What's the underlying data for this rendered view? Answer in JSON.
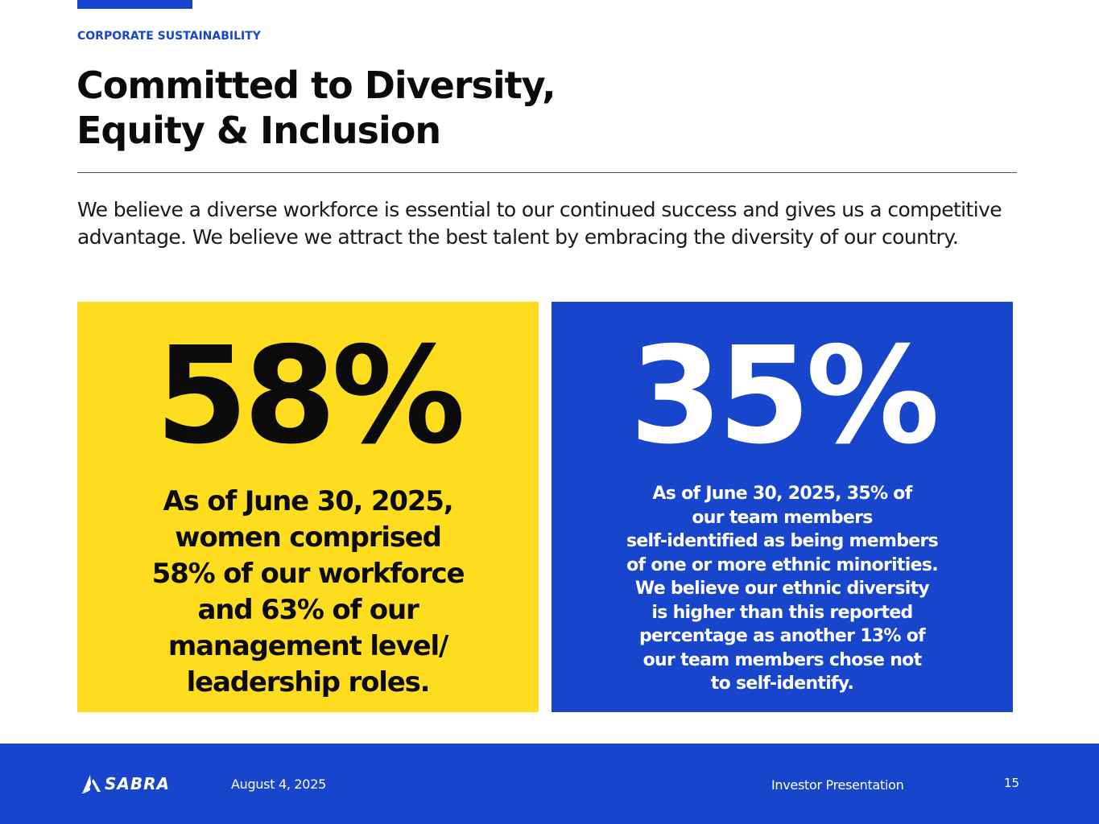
{
  "colors": {
    "brand_blue": "#1745CC",
    "accent_yellow": "#FEDD1F",
    "text_dark": "#0b0b0b",
    "text_light": "#ffffff"
  },
  "header": {
    "eyebrow": "CORPORATE SUSTAINABILITY",
    "title_lines": [
      "Committed to Diversity,",
      "Equity & Inclusion"
    ]
  },
  "intro": "We believe a diverse workforce is essential to our continued success and gives us a competitive advantage. We believe we attract the best talent by embracing the diversity of our country.",
  "stats": [
    {
      "value": "58%",
      "description_lines": [
        "As of June 30, 2025,",
        "women comprised",
        "58% of our workforce",
        "and 63% of our",
        "management level/",
        "leadership roles."
      ]
    },
    {
      "value": "35%",
      "description_lines": [
        "As of June 30, 2025, 35% of",
        "our team members",
        "self-identified as being members",
        "of one or more ethnic minorities.",
        "We believe our ethnic diversity",
        "is higher than this reported",
        "percentage as another 13% of",
        "our team members chose not",
        "to self-identify."
      ]
    }
  ],
  "footer": {
    "logo_icon": "sabra-logo-mark",
    "logo_text": "SABRA",
    "date": "August 4, 2025",
    "label": "Investor Presentation",
    "page_number": "15"
  }
}
